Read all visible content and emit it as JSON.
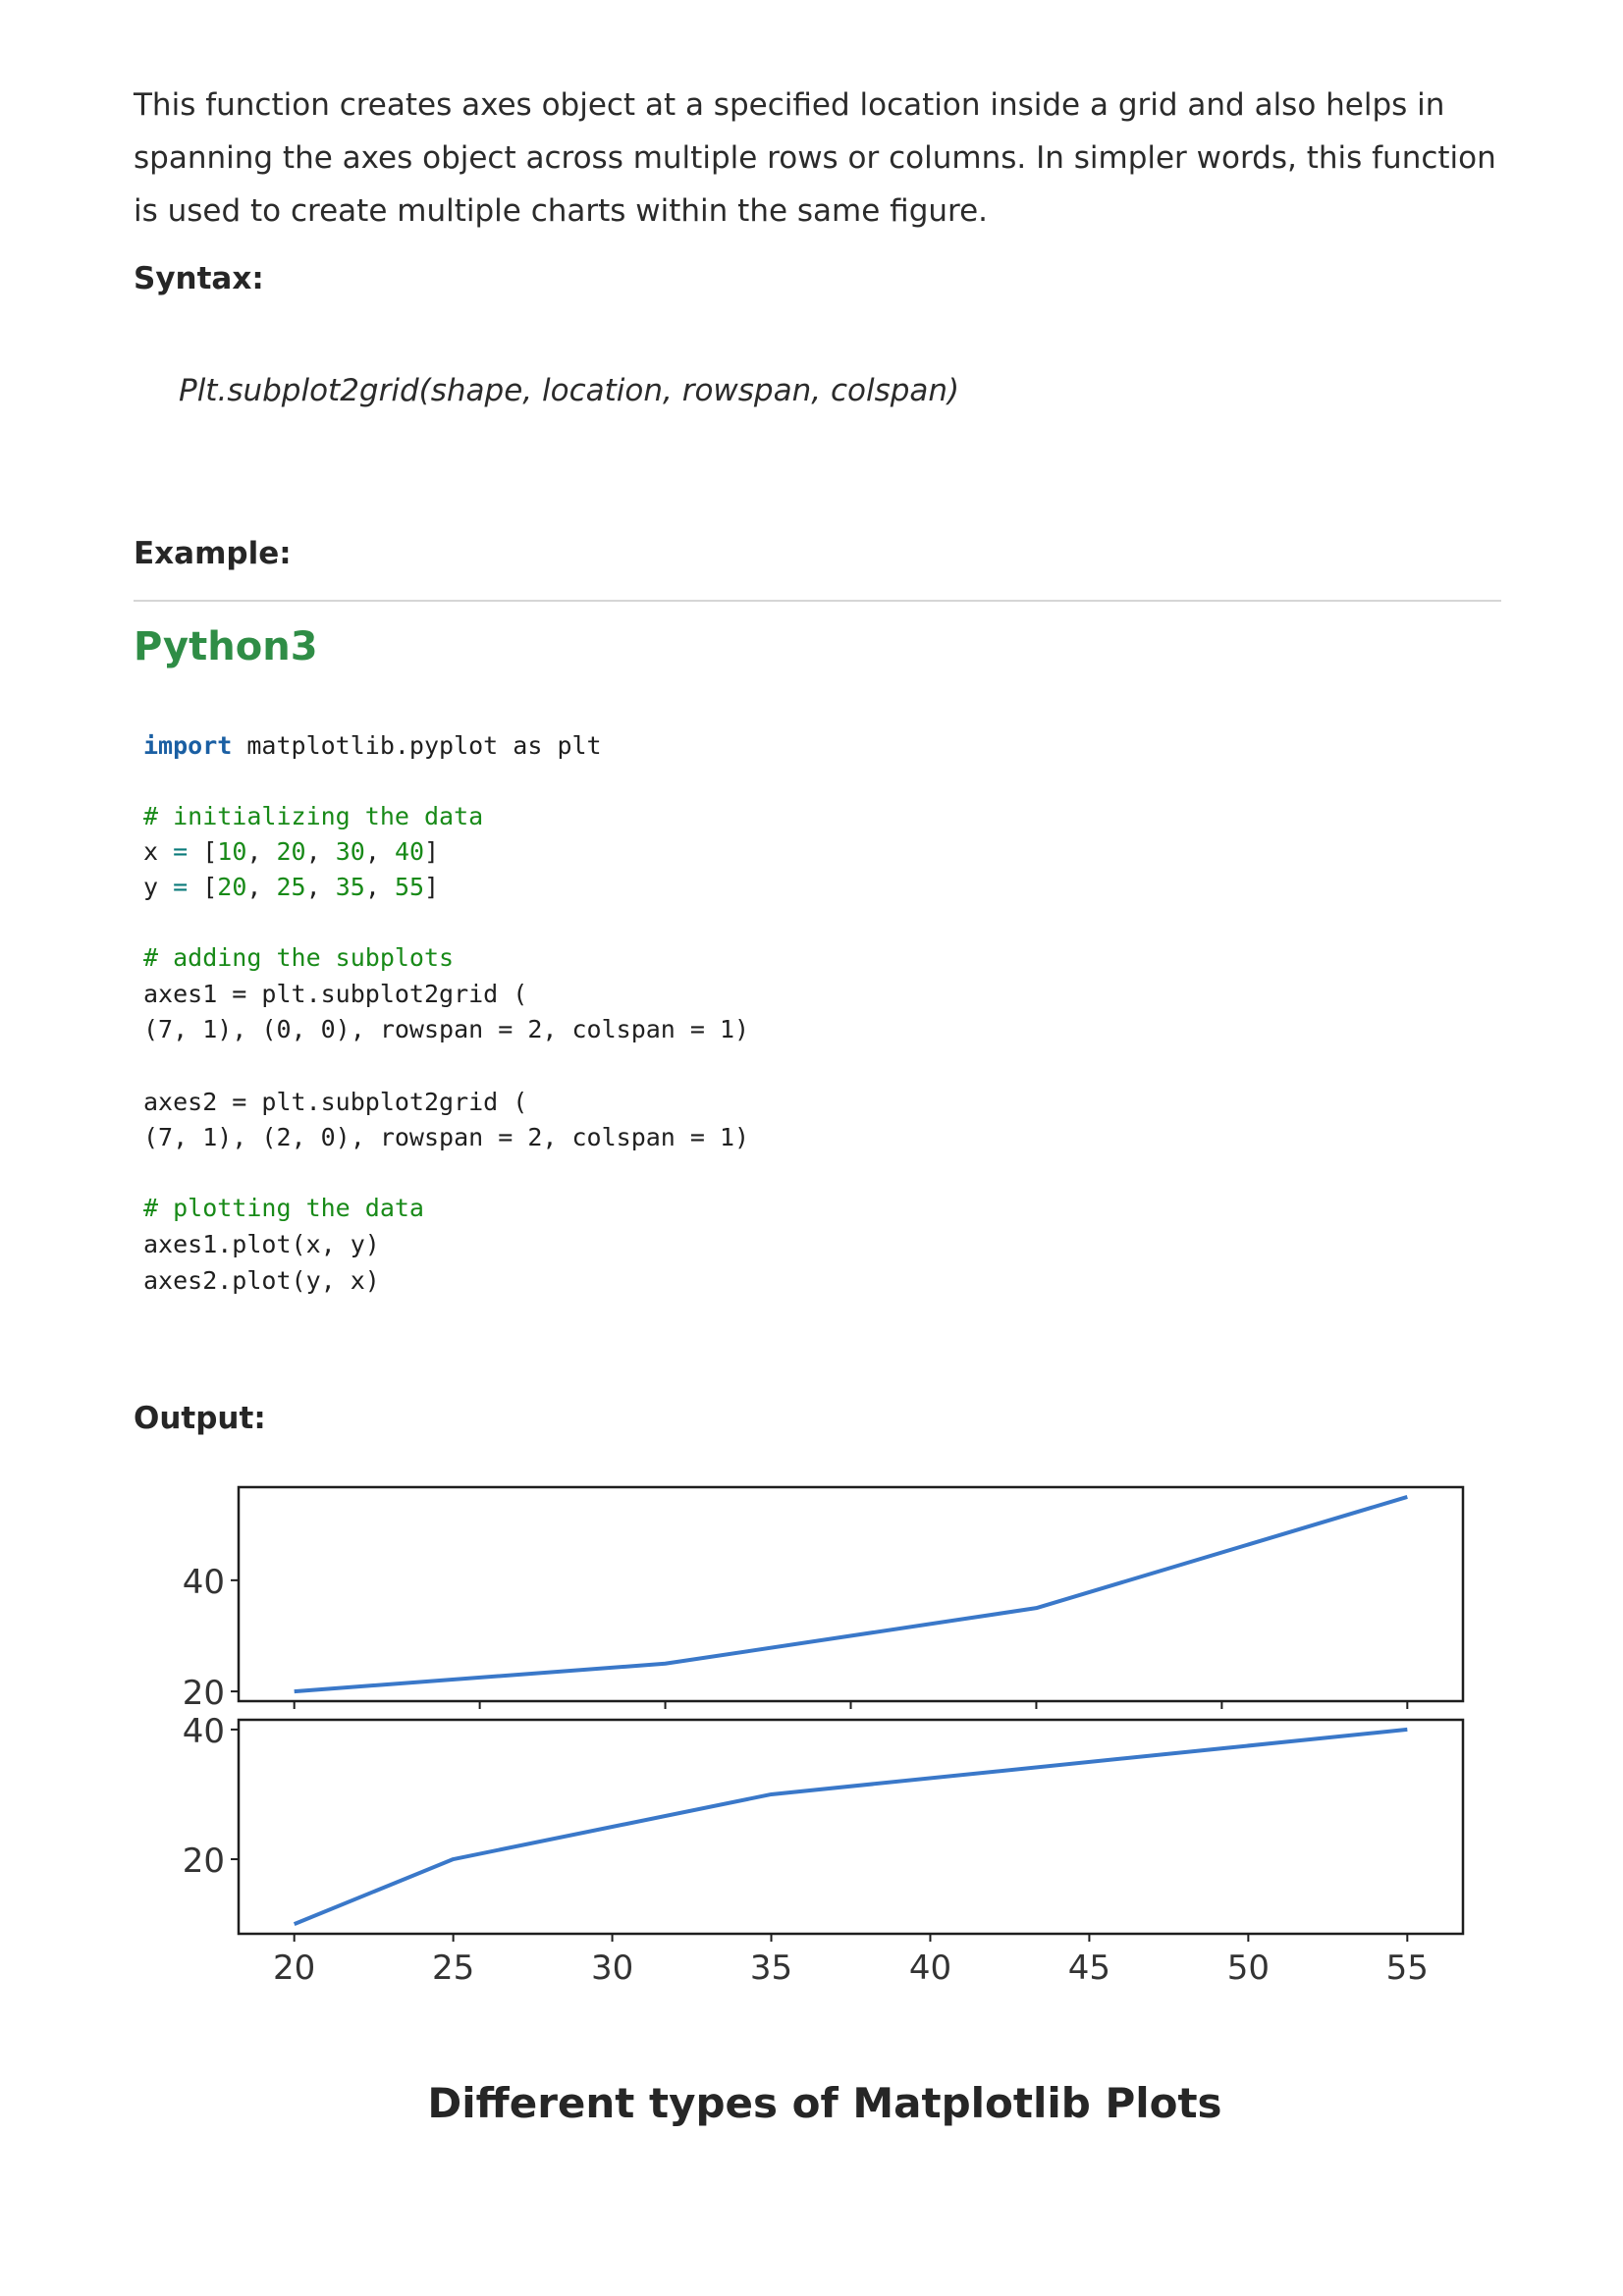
{
  "intro_text": "This function creates axes object at a specified location inside a grid and also helps in spanning the axes object across multiple rows or columns. In simpler words, this function is used to create multiple charts within the same figure.",
  "syntax_label": "Syntax:",
  "syntax_code": "Plt.subplot2grid(shape, location, rowspan, colspan)",
  "example_label": "Example:",
  "language_label": "Python3",
  "code_lines": [
    "import matplotlib.pyplot as plt",
    "",
    "# initializing the data",
    "x = [10, 20, 30, 40]",
    "y = [20, 25, 35, 55]",
    "",
    "# adding the subplots",
    "axes1 = plt.subplot2grid (",
    "(7, 1), (0, 0), rowspan = 2, colspan = 1)",
    "",
    "axes2 = plt.subplot2grid (",
    "(7, 1), (2, 0), rowspan = 2, colspan = 1)",
    "",
    "# plotting the data",
    "axes1.plot(x, y)",
    "axes2.plot(y, x)"
  ],
  "output_label": "Output:",
  "caption": "Different types of Matplotlib Plots",
  "colors": {
    "accent_green": "#2f8d46",
    "line_blue": "#3a78c9"
  },
  "chart_data": [
    {
      "type": "line",
      "title": "",
      "xlabel": "",
      "ylabel": "",
      "x": [
        10,
        20,
        30,
        40
      ],
      "y": [
        20,
        25,
        35,
        55
      ],
      "xlim": [
        8.5,
        41.5
      ],
      "ylim": [
        18.25,
        56.75
      ],
      "yticks": [
        20,
        40
      ],
      "ytick_labels": [
        "20",
        "40"
      ],
      "xticks": [
        10,
        15,
        20,
        25,
        30,
        35,
        40
      ],
      "xtick_labels_shown": false,
      "grid": false
    },
    {
      "type": "line",
      "title": "",
      "xlabel": "",
      "ylabel": "",
      "x": [
        20,
        25,
        35,
        55
      ],
      "y": [
        10,
        20,
        30,
        40
      ],
      "xlim": [
        18.25,
        56.75
      ],
      "ylim": [
        8.5,
        41.5
      ],
      "yticks": [
        20,
        40
      ],
      "ytick_labels": [
        "20",
        "40"
      ],
      "xticks": [
        20,
        25,
        30,
        35,
        40,
        45,
        50,
        55
      ],
      "xtick_labels": [
        "20",
        "25",
        "30",
        "35",
        "40",
        "45",
        "50",
        "55"
      ],
      "grid": false
    }
  ]
}
